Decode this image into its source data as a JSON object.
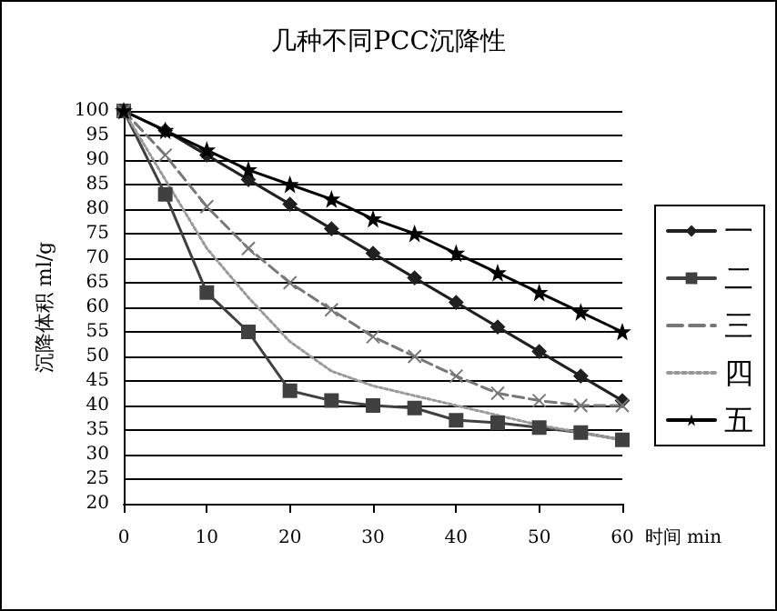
{
  "chart_data": {
    "type": "line",
    "title": "几种不同PCC沉降性",
    "xlabel": "时间 min",
    "ylabel": "沉降体积 ml/g",
    "x": [
      0,
      5,
      10,
      15,
      20,
      25,
      30,
      35,
      40,
      45,
      50,
      55,
      60
    ],
    "series": [
      {
        "name": "一",
        "color": "#202020",
        "marker": "diamond",
        "line_style": "solid",
        "values": [
          100,
          96,
          91,
          86,
          81,
          76,
          71,
          66,
          61,
          56,
          51,
          46,
          41
        ]
      },
      {
        "name": "二",
        "color": "#404040",
        "marker": "square",
        "line_style": "solid",
        "values": [
          100,
          83,
          63,
          55,
          43,
          41,
          40,
          39.5,
          37,
          36.5,
          35.5,
          34.5,
          33
        ]
      },
      {
        "name": "三",
        "color": "#777777",
        "marker": "cross",
        "line_style": "dashed",
        "values": [
          100,
          91,
          80.5,
          72,
          65,
          59.5,
          54,
          50,
          46,
          42.5,
          41,
          40,
          40
        ]
      },
      {
        "name": "四",
        "color": "#999999",
        "marker": "none",
        "line_style": "dotted",
        "values": [
          100,
          86,
          72,
          62,
          53,
          47,
          44,
          42,
          40,
          38,
          36,
          34.5,
          33
        ]
      },
      {
        "name": "五",
        "color": "#000000",
        "marker": "star",
        "line_style": "solid",
        "values": [
          100,
          96,
          92,
          88,
          85,
          82,
          78,
          75,
          71,
          67,
          63,
          59,
          55
        ]
      }
    ],
    "xlim": [
      0,
      60
    ],
    "xticks": [
      0,
      10,
      20,
      30,
      40,
      50,
      60
    ],
    "ylim": [
      20,
      100
    ],
    "yticks": [
      20,
      25,
      30,
      35,
      40,
      45,
      50,
      55,
      60,
      65,
      70,
      75,
      80,
      85,
      90,
      95,
      100
    ],
    "grid": "y",
    "legend": "right"
  }
}
